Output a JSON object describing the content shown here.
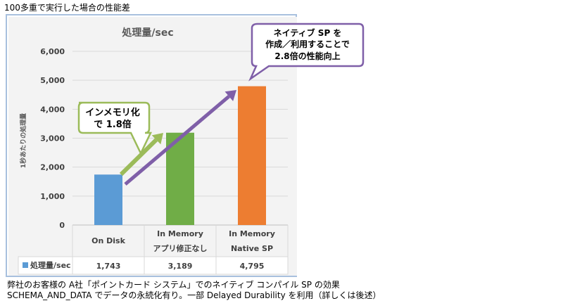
{
  "caption_top": "100多重で実行した場合の性能差",
  "caption_bottom": [
    "弊社のお客様の A社「ポイントカード システム」でのネイティブ コンパイル SP の効果",
    "SCHEMA_AND_DATA でデータの永続化有り。一部 Delayed Durability を利用（詳しくは後述）"
  ],
  "callouts": {
    "in_memory": [
      "インメモリ化",
      "で 1.8倍"
    ],
    "native_sp": [
      "ネイティブ SP を",
      "作成／利用することで",
      "2.8倍の性能向上"
    ]
  },
  "colors": {
    "on_disk": "#5b9bd5",
    "in_memory": "#70ad47",
    "native_sp": "#ed7d31",
    "arrow_green": "#9bbb59",
    "arrow_purple": "#7f5fa8",
    "callout_green_border": "#9bbb59",
    "callout_purple_border": "#7f5fa8"
  },
  "chart_data": {
    "type": "bar",
    "title": "処理量/sec",
    "ylabel": "1秒あたりの処理量",
    "ylim": [
      0,
      6000
    ],
    "yticks": [
      "0",
      "1,000",
      "2,000",
      "3,000",
      "4,000",
      "5,000",
      "6,000"
    ],
    "categories": [
      [
        "On Disk"
      ],
      [
        "In Memory",
        "アプリ修正なし"
      ],
      [
        "In Memory",
        "Native SP"
      ]
    ],
    "series": [
      {
        "name": "処理量/sec",
        "values": [
          1743,
          3189,
          4795
        ],
        "labels": [
          "1,743",
          "3,189",
          "4,795"
        ]
      }
    ],
    "grid": true,
    "legend": "data-table"
  }
}
